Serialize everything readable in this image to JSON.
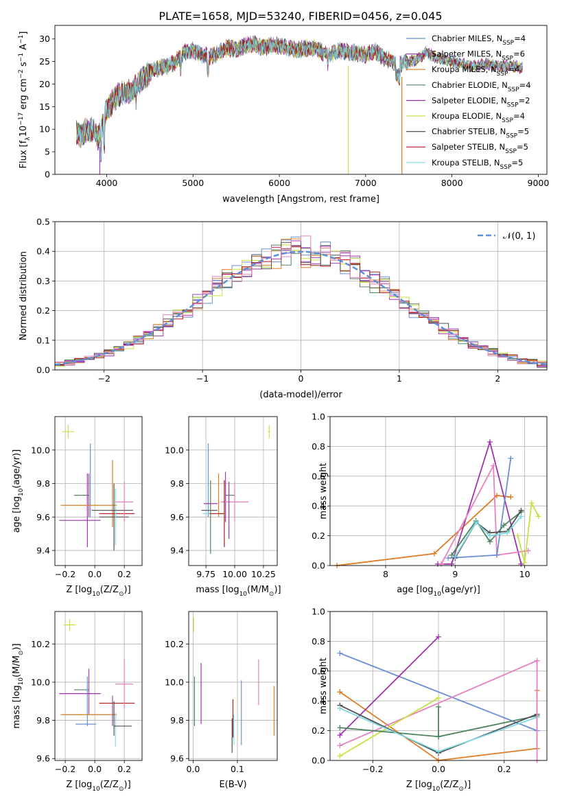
{
  "figure": {
    "title": "PLATE=1658, MJD=53240, FIBERID=0456, z=0.045"
  },
  "colors": {
    "ChabrierMILES": "#6a8fd6",
    "SalpeterMILES": "#a040c0",
    "KroupaMILES": "#e07b20",
    "ChabrierELODIE": "#4f8460",
    "SalpeterELODIE": "#a030b0",
    "KroupaELODIE": "#c8e040",
    "ChabrierSTELIB": "#505050",
    "SalpeterSTELIB": "#b01818",
    "KroupaSTELIB": "#7fd8e0",
    "pink": "#e87fbf",
    "gaussian": "#5b8fd9"
  },
  "chart_data": [
    {
      "id": "spectrum",
      "type": "line",
      "xlabel": "wavelength [Angstrom, rest frame]",
      "ylabel": "Flux [f",
      "ylabel_sub": "λ",
      "ylabel_rest": "10",
      "ylabel_exp": "−17",
      "ylabel_units": " erg cm",
      "ylabel_units_exp": "−2",
      "ylabel_units2": " s",
      "ylabel_units2_exp": "−1",
      "ylabel_units3": " A",
      "ylabel_units3_exp": "−1",
      "ylabel_close": "]",
      "xlim": [
        3400,
        9100
      ],
      "ylim": [
        0,
        33
      ],
      "xticks": [
        4000,
        5000,
        6000,
        7000,
        8000,
        9000
      ],
      "yticks": [
        0,
        5,
        10,
        15,
        20,
        25,
        30
      ],
      "envelope": {
        "x": [
          3650,
          3700,
          3750,
          3800,
          3850,
          3900,
          3950,
          4000,
          4100,
          4200,
          4300,
          4400,
          4500,
          4600,
          4700,
          4800,
          4900,
          5000,
          5100,
          5200,
          5300,
          5400,
          5500,
          5600,
          5700,
          5800,
          5900,
          6000,
          6100,
          6200,
          6300,
          6400,
          6500,
          6600,
          6700,
          6800,
          6900,
          7000,
          7100,
          7200,
          7300,
          7400,
          7500,
          7600,
          7700,
          7800,
          7900,
          8000,
          8100,
          8200,
          8300,
          8400,
          8500,
          8600,
          8700,
          8820
        ],
        "y": [
          9.5,
          8.5,
          10.0,
          9.5,
          10.0,
          8.0,
          10.5,
          14.5,
          17.0,
          18.0,
          18.5,
          21.0,
          22.5,
          23.5,
          24.0,
          25.0,
          27.0,
          27.5,
          26.5,
          26.0,
          27.0,
          28.0,
          27.5,
          28.5,
          29.0,
          28.0,
          28.5,
          28.5,
          28.0,
          27.5,
          28.0,
          28.0,
          27.0,
          26.5,
          27.5,
          27.0,
          27.0,
          26.5,
          27.5,
          26.0,
          25.0,
          24.5,
          25.0,
          25.5,
          27.0,
          26.0,
          25.5,
          25.0,
          24.5,
          24.0,
          24.0,
          24.5,
          24.0,
          24.0,
          24.0,
          23.5
        ]
      },
      "dips": [
        {
          "x": 3920,
          "y": 0,
          "series": "Salpeter MILES"
        },
        {
          "x": 6800,
          "y": 0,
          "series": "Kroupa ELODIE"
        },
        {
          "x": 7420,
          "y": 0,
          "series": "Kroupa MILES"
        }
      ],
      "series": [
        {
          "label": "Chabrier MILES, N",
          "sub": "SSP",
          "n": "=4",
          "color": "#6a8fd6"
        },
        {
          "label": "Salpeter MILES, N",
          "sub": "SSP",
          "n": "=6",
          "color": "#a040c0"
        },
        {
          "label": "Kroupa MILES, N",
          "sub": "SSP",
          "n": "=4",
          "color": "#e07b20"
        },
        {
          "label": "Chabrier ELODIE, N",
          "sub": "SSP",
          "n": "=4",
          "color": "#4f8460"
        },
        {
          "label": "Salpeter ELODIE, N",
          "sub": "SSP",
          "n": "=2",
          "color": "#a030b0"
        },
        {
          "label": "Kroupa ELODIE, N",
          "sub": "SSP",
          "n": "=4",
          "color": "#c8e040"
        },
        {
          "label": "Chabrier STELIB, N",
          "sub": "SSP",
          "n": "=5",
          "color": "#505050"
        },
        {
          "label": "Salpeter STELIB, N",
          "sub": "SSP",
          "n": "=5",
          "color": "#b01818"
        },
        {
          "label": "Kroupa STELIB, N",
          "sub": "SSP",
          "n": "=5",
          "color": "#7fd8e0"
        }
      ]
    },
    {
      "id": "residuals",
      "type": "histogram",
      "xlabel": "(data-model)/error",
      "ylabel": "Normed distribution",
      "xlim": [
        -2.5,
        2.5
      ],
      "ylim": [
        0,
        0.5
      ],
      "xticks": [
        -2,
        -1,
        0,
        1,
        2
      ],
      "yticks": [
        0.0,
        0.1,
        0.2,
        0.3,
        0.4,
        0.5
      ],
      "bin_width": 0.1,
      "bin_start": -2.5,
      "reference_heights": [
        0.03,
        0.035,
        0.04,
        0.045,
        0.05,
        0.06,
        0.07,
        0.08,
        0.09,
        0.105,
        0.12,
        0.14,
        0.155,
        0.175,
        0.195,
        0.22,
        0.24,
        0.26,
        0.28,
        0.3,
        0.315,
        0.33,
        0.345,
        0.36,
        0.37,
        0.38,
        0.385,
        0.39,
        0.395,
        0.4,
        0.4,
        0.4,
        0.395,
        0.39,
        0.385,
        0.375,
        0.365,
        0.355,
        0.34,
        0.325,
        0.31,
        0.295,
        0.275,
        0.255,
        0.235,
        0.215,
        0.195,
        0.175,
        0.155,
        0.14
      ],
      "reference_heights_right": [
        0.12,
        0.105,
        0.09,
        0.08,
        0.07,
        0.06,
        0.05,
        0.045,
        0.04,
        0.035,
        0.03,
        0.025
      ],
      "gaussian_label": "𝒩(0, 1)"
    },
    {
      "id": "age_vs_Z",
      "type": "scatter",
      "xlabel": "Z [log",
      "xlabel_sub": "10",
      "xlabel_rest": "(Z/Z",
      "xlabel_sun": "⊙",
      "xlabel_close": ")]",
      "ylabel": "age  [log",
      "ylabel_sub": "10",
      "ylabel_rest": "(age/yr)]",
      "xlim": [
        -0.27,
        0.32
      ],
      "ylim": [
        9.31,
        10.2
      ],
      "xticks": [
        -0.2,
        0.0,
        0.2
      ],
      "yticks": [
        9.4,
        9.6,
        9.8,
        10.0
      ],
      "points": [
        {
          "x": -0.18,
          "y": 10.11,
          "xerr": 0.04,
          "yerr": 0.04,
          "color": "#c8e040"
        },
        {
          "x": -0.03,
          "y": 9.82,
          "xerr": 0.0,
          "yerr": 0.22,
          "color": "#6a8fd6"
        },
        {
          "x": -0.04,
          "y": 9.73,
          "xerr": 0.0,
          "yerr": 0.13,
          "color": "#a040c0"
        },
        {
          "x": -0.09,
          "y": 9.73,
          "xerr": 0.05,
          "yerr": 0.0,
          "color": "#4f8460"
        },
        {
          "x": -0.05,
          "y": 9.64,
          "xerr": 0.0,
          "yerr": 0.22,
          "color": "#a030b0"
        },
        {
          "x": -0.1,
          "y": 9.58,
          "xerr": 0.14,
          "yerr": 0.0,
          "color": "#a030b0"
        },
        {
          "x": -0.04,
          "y": 9.67,
          "xerr": 0.19,
          "yerr": 0.0,
          "color": "#e07b20"
        },
        {
          "x": 0.12,
          "y": 9.74,
          "xerr": 0.0,
          "yerr": 0.2,
          "color": "#e07b20"
        },
        {
          "x": 0.13,
          "y": 9.6,
          "xerr": 0.1,
          "yerr": 0.2,
          "color": "#505050"
        },
        {
          "x": 0.15,
          "y": 9.62,
          "xerr": 0.12,
          "yerr": 0.0,
          "color": "#b01818"
        },
        {
          "x": 0.14,
          "y": 9.6,
          "xerr": 0.0,
          "yerr": 0.17,
          "color": "#7fd8e0"
        },
        {
          "x": 0.2,
          "y": 9.69,
          "xerr": 0.06,
          "yerr": 0.12,
          "color": "#e87fbf"
        },
        {
          "x": 0.12,
          "y": 9.64,
          "xerr": 0.14,
          "yerr": 0.0,
          "color": "#505050"
        }
      ]
    },
    {
      "id": "age_vs_mass",
      "type": "scatter",
      "xlabel": "mass [log",
      "xlabel_sub": "10",
      "xlabel_rest": "(M/M",
      "xlabel_sun": "⊙",
      "xlabel_close": ")]",
      "xlim": [
        9.6,
        10.37
      ],
      "ylim": [
        9.31,
        10.2
      ],
      "xticks": [
        9.75,
        10.0,
        10.25
      ],
      "yticks": [
        9.4,
        9.6,
        9.8,
        10.0
      ],
      "points": [
        {
          "x": 10.3,
          "y": 10.11,
          "xerr": 0.01,
          "yerr": 0.04,
          "color": "#c8e040"
        },
        {
          "x": 9.77,
          "y": 9.82,
          "xerr": 0.0,
          "yerr": 0.22,
          "color": "#6a8fd6"
        },
        {
          "x": 9.86,
          "y": 9.73,
          "xerr": 0.0,
          "yerr": 0.13,
          "color": "#e07b20"
        },
        {
          "x": 9.92,
          "y": 9.72,
          "xerr": 0.0,
          "yerr": 0.15,
          "color": "#a040c0"
        },
        {
          "x": 9.96,
          "y": 9.73,
          "xerr": 0.04,
          "yerr": 0.0,
          "color": "#4f8460"
        },
        {
          "x": 10.0,
          "y": 9.69,
          "xerr": 0.12,
          "yerr": 0.12,
          "color": "#e87fbf"
        },
        {
          "x": 9.79,
          "y": 9.68,
          "xerr": 0.06,
          "yerr": 0.0,
          "color": "#a030b0"
        },
        {
          "x": 9.78,
          "y": 9.64,
          "xerr": 0.07,
          "yerr": 0.0,
          "color": "#505050"
        },
        {
          "x": 9.84,
          "y": 9.62,
          "xerr": 0.07,
          "yerr": 0.0,
          "color": "#b01818"
        },
        {
          "x": 9.79,
          "y": 9.6,
          "xerr": 0.0,
          "yerr": 0.22,
          "color": "#4f8460"
        },
        {
          "x": 9.91,
          "y": 9.62,
          "xerr": 0.0,
          "yerr": 0.2,
          "color": "#b01818"
        },
        {
          "x": 9.95,
          "y": 9.64,
          "xerr": 0.0,
          "yerr": 0.17,
          "color": "#a030b0"
        },
        {
          "x": 9.75,
          "y": 9.62,
          "xerr": 0.03,
          "yerr": 0.0,
          "color": "#7fd8e0"
        }
      ]
    },
    {
      "id": "weight_vs_age",
      "type": "line",
      "xlabel": "age  [log",
      "xlabel_sub": "10",
      "xlabel_rest": "(age/yr)]",
      "ylabel": "mass weight",
      "xlim": [
        7.2,
        10.32
      ],
      "ylim": [
        0,
        1.0
      ],
      "xticks": [
        8,
        9,
        10
      ],
      "yticks": [
        0.0,
        0.2,
        0.4,
        0.6,
        0.8,
        1.0
      ],
      "series": [
        {
          "color": "#e07b20",
          "x": [
            7.3,
            8.7,
            9.6,
            9.8
          ],
          "y": [
            0.0,
            0.08,
            0.47,
            0.46
          ]
        },
        {
          "color": "#a030b0",
          "x": [
            8.75,
            8.95,
            9.5,
            9.95
          ],
          "y": [
            0.01,
            0.01,
            0.83,
            0.01
          ]
        },
        {
          "color": "#e87fbf",
          "x": [
            8.8,
            9.55,
            9.6,
            10.05
          ],
          "y": [
            0.01,
            0.67,
            0.07,
            0.1
          ]
        },
        {
          "color": "#6a8fd6",
          "x": [
            8.9,
            9.6,
            9.8
          ],
          "y": [
            0.05,
            0.07,
            0.72
          ]
        },
        {
          "color": "#c8e040",
          "x": [
            9.9,
            10.0,
            10.1,
            10.2
          ],
          "y": [
            0.2,
            0.02,
            0.42,
            0.33
          ]
        },
        {
          "color": "#4f8460",
          "x": [
            8.95,
            9.3,
            9.5,
            9.7,
            9.95
          ],
          "y": [
            0.07,
            0.3,
            0.16,
            0.27,
            0.36
          ]
        },
        {
          "color": "#505050",
          "x": [
            9.0,
            9.3,
            9.5,
            9.75,
            9.95
          ],
          "y": [
            0.05,
            0.29,
            0.22,
            0.23,
            0.37
          ]
        },
        {
          "color": "#7fd8e0",
          "x": [
            9.0,
            9.3,
            9.5,
            9.75,
            9.95
          ],
          "y": [
            0.06,
            0.29,
            0.2,
            0.22,
            0.33
          ]
        }
      ]
    },
    {
      "id": "mass_vs_Z",
      "type": "scatter",
      "xlabel": "Z [log",
      "xlabel_sub": "10",
      "xlabel_rest": "(Z/Z",
      "xlabel_sun": "⊙",
      "xlabel_close": ")]",
      "ylabel": "mass [log",
      "ylabel_sub": "10",
      "ylabel_rest": "(M/M",
      "ylabel_sun": "⊙",
      "ylabel_close": ")]",
      "xlim": [
        -0.27,
        0.32
      ],
      "ylim": [
        9.59,
        10.37
      ],
      "xticks": [
        -0.2,
        0.0,
        0.2
      ],
      "yticks": [
        9.6,
        9.8,
        10.0,
        10.2
      ],
      "points": [
        {
          "x": -0.17,
          "y": 10.3,
          "xerr": 0.04,
          "yerr": 0.03,
          "color": "#c8e040"
        },
        {
          "x": -0.04,
          "y": 9.95,
          "xerr": 0.0,
          "yerr": 0.12,
          "color": "#a040c0"
        },
        {
          "x": -0.09,
          "y": 9.96,
          "xerr": 0.05,
          "yerr": 0.0,
          "color": "#4f8460"
        },
        {
          "x": -0.05,
          "y": 9.9,
          "xerr": 0.0,
          "yerr": 0.13,
          "color": "#6a8fd6"
        },
        {
          "x": -0.1,
          "y": 9.94,
          "xerr": 0.14,
          "yerr": 0.0,
          "color": "#a030b0"
        },
        {
          "x": -0.04,
          "y": 9.83,
          "xerr": 0.19,
          "yerr": 0.0,
          "color": "#e07b20"
        },
        {
          "x": -0.06,
          "y": 9.78,
          "xerr": 0.07,
          "yerr": 0.0,
          "color": "#6a8fd6"
        },
        {
          "x": 0.15,
          "y": 9.89,
          "xerr": 0.12,
          "yerr": 0.0,
          "color": "#b01818"
        },
        {
          "x": 0.13,
          "y": 9.81,
          "xerr": 0.0,
          "yerr": 0.09,
          "color": "#505050"
        },
        {
          "x": 0.14,
          "y": 9.75,
          "xerr": 0.0,
          "yerr": 0.09,
          "color": "#7fd8e0"
        },
        {
          "x": 0.12,
          "y": 9.85,
          "xerr": 0.0,
          "yerr": 0.08,
          "color": "#a040c0"
        },
        {
          "x": 0.2,
          "y": 9.99,
          "xerr": 0.06,
          "yerr": 0.13,
          "color": "#e87fbf"
        },
        {
          "x": 0.19,
          "y": 9.77,
          "xerr": 0.06,
          "yerr": 0.0,
          "color": "#505050"
        }
      ]
    },
    {
      "id": "mass_vs_ebv",
      "type": "scatter",
      "xlabel": "E(B-V)",
      "xlim": [
        -0.01,
        0.19
      ],
      "ylim": [
        9.59,
        10.37
      ],
      "xticks": [
        0.0,
        0.1
      ],
      "yticks": [
        9.6,
        9.8,
        10.0,
        10.2
      ],
      "points": [
        {
          "x": 0.001,
          "y": 10.3,
          "xerr": 0.0,
          "yerr": 0.04,
          "color": "#c8e040"
        },
        {
          "x": 0.003,
          "y": 9.9,
          "xerr": 0.0,
          "yerr": 0.13,
          "color": "#4f8460"
        },
        {
          "x": 0.018,
          "y": 9.94,
          "xerr": 0.0,
          "yerr": 0.16,
          "color": "#a030b0"
        },
        {
          "x": 0.09,
          "y": 9.81,
          "xerr": 0.0,
          "yerr": 0.1,
          "color": "#b01818"
        },
        {
          "x": 0.092,
          "y": 9.75,
          "xerr": 0.0,
          "yerr": 0.08,
          "color": "#7fd8e0"
        },
        {
          "x": 0.088,
          "y": 9.72,
          "xerr": 0.0,
          "yerr": 0.09,
          "color": "#505050"
        },
        {
          "x": 0.109,
          "y": 9.84,
          "xerr": 0.0,
          "yerr": 0.17,
          "color": "#6a8fd6"
        },
        {
          "x": 0.148,
          "y": 10.0,
          "xerr": 0.0,
          "yerr": 0.12,
          "color": "#e87fbf"
        },
        {
          "x": 0.183,
          "y": 9.85,
          "xerr": 0.0,
          "yerr": 0.13,
          "color": "#e07b20"
        }
      ]
    },
    {
      "id": "weight_vs_Z",
      "type": "line",
      "xlabel": "Z [log",
      "xlabel_sub": "10",
      "xlabel_rest": "(Z/Z",
      "xlabel_sun": "⊙",
      "xlabel_close": ")]",
      "ylabel": "mass weight",
      "xlim": [
        -0.33,
        0.33
      ],
      "ylim": [
        0,
        1.0
      ],
      "xticks": [
        -0.2,
        0.0,
        0.2
      ],
      "yticks": [
        0.0,
        0.2,
        0.4,
        0.6,
        0.8,
        1.0
      ],
      "series": [
        {
          "color": "#6a8fd6",
          "x": [
            -0.3,
            0.3
          ],
          "y": [
            0.72,
            0.2
          ]
        },
        {
          "color": "#e07b20",
          "x": [
            -0.3,
            0.0,
            0.3
          ],
          "y": [
            0.46,
            0.0,
            0.08
          ]
        },
        {
          "color": "#a030b0",
          "x": [
            -0.3,
            0.0
          ],
          "y": [
            0.17,
            0.83
          ]
        },
        {
          "color": "#e87fbf",
          "x": [
            -0.3,
            0.3
          ],
          "y": [
            0.1,
            0.67
          ]
        },
        {
          "color": "#c8e040",
          "x": [
            -0.3,
            0.0
          ],
          "y": [
            0.03,
            0.42
          ]
        },
        {
          "color": "#4f8460",
          "x": [
            -0.3,
            0.0,
            0.3
          ],
          "y": [
            0.22,
            0.16,
            0.3
          ]
        },
        {
          "color": "#505050",
          "x": [
            -0.3,
            0.0,
            0.3
          ],
          "y": [
            0.37,
            0.05,
            0.31
          ]
        },
        {
          "color": "#7fd8e0",
          "x": [
            -0.3,
            0.0,
            0.3
          ],
          "y": [
            0.35,
            0.06,
            0.29
          ]
        },
        {
          "color": "#e07b20",
          "x": [
            0.3,
            0.3
          ],
          "y": [
            0.08,
            0.47
          ]
        },
        {
          "color": "#4f8460",
          "x": [
            0.0,
            0.0
          ],
          "y": [
            0.16,
            0.36
          ]
        },
        {
          "color": "#e87fbf",
          "x": [
            0.3,
            0.3
          ],
          "y": [
            0.0,
            0.67
          ]
        }
      ]
    }
  ]
}
